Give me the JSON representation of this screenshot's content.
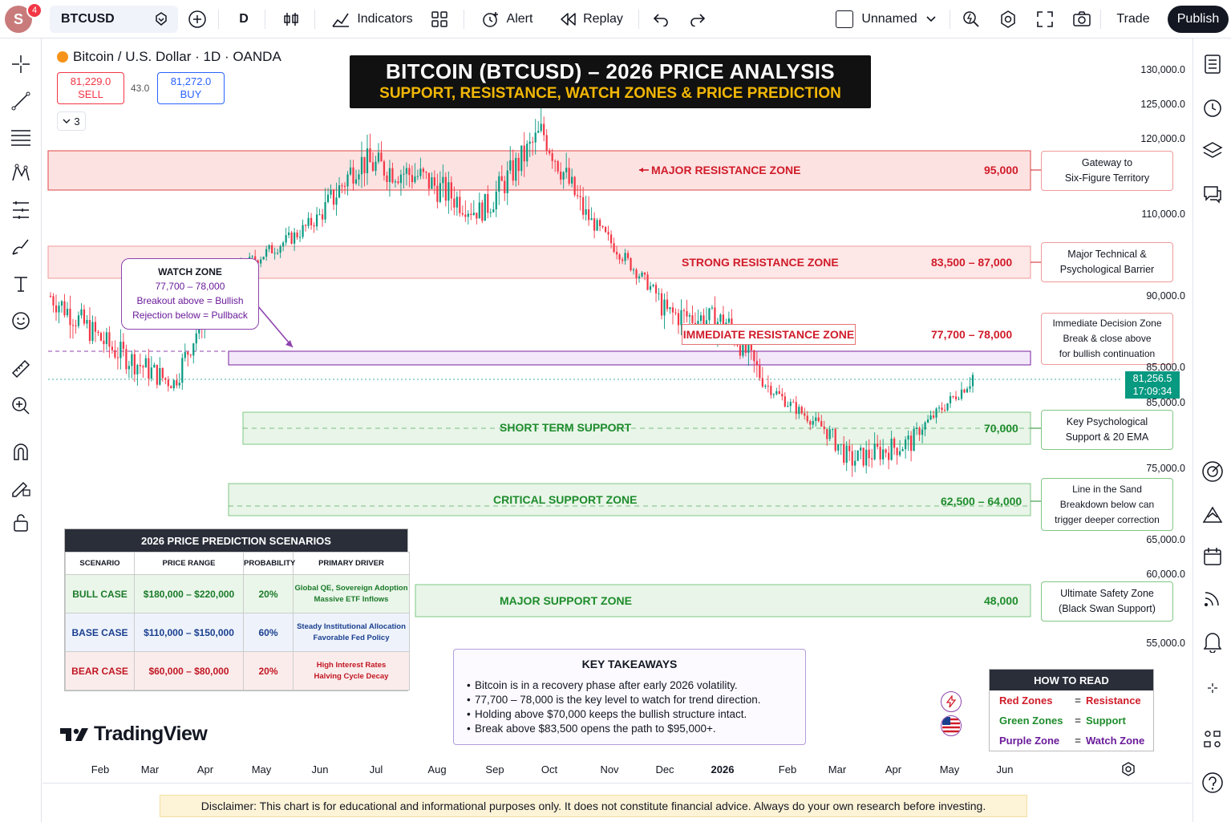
{
  "toolbar": {
    "avatar_initial": "S",
    "avatar_badge": "4",
    "symbol": "BTCUSD",
    "interval": "D",
    "indicators_label": "Indicators",
    "alert_label": "Alert",
    "replay_label": "Replay",
    "layout_name": "Unnamed",
    "trade_label": "Trade",
    "publish_label": "Publish"
  },
  "legend": {
    "title": "Bitcoin / U.S. Dollar · 1D · OANDA",
    "sell_price": "81,229.0",
    "sell_label": "SELL",
    "spread": "43.0",
    "buy_price": "81,272.0",
    "buy_label": "BUY",
    "indicator_count": "3"
  },
  "banner": {
    "title": "BITCOIN (BTCUSD) – 2026 PRICE ANALYSIS",
    "subtitle": "SUPPORT, RESISTANCE, WATCH ZONES & PRICE PREDICTION"
  },
  "zones": {
    "major_resistance": {
      "label": "MAJOR RESISTANCE ZONE",
      "value": "95,000"
    },
    "strong_resistance": {
      "label": "STRONG RESISTANCE ZONE",
      "value": "83,500 – 87,000"
    },
    "immediate_resistance": {
      "label": "IMMEDIATE RESISTANCE ZONE",
      "value": "77,700 – 78,000"
    },
    "short_support": {
      "label": "SHORT TERM SUPPORT",
      "value": "70,000"
    },
    "critical_support": {
      "label": "CRITICAL SUPPORT ZONE",
      "value": "62,500 – 64,000"
    },
    "major_support": {
      "label": "MAJOR SUPPORT ZONE",
      "value": "48,000"
    }
  },
  "callouts": {
    "c1": {
      "l1": "Gateway to",
      "l2": "Six-Figure Territory"
    },
    "c2": {
      "l1": "Major Technical &",
      "l2": "Psychological Barrier"
    },
    "c3": {
      "l1": "Immediate Decision Zone",
      "l2": "Break & close above",
      "l3": "for bullish continuation"
    },
    "c4": {
      "l1": "Key Psychological",
      "l2": "Support & 20 EMA"
    },
    "c5": {
      "l1": "Line in the Sand",
      "l2": "Breakdown below can",
      "l3": "trigger deeper correction"
    },
    "c6": {
      "l1": "Ultimate Safety Zone",
      "l2": "(Black Swan Support)"
    }
  },
  "watch_zone": {
    "title": "WATCH ZONE",
    "range": "77,700 – 78,000",
    "line1": "Breakout above = Bullish",
    "line2": "Rejection below = Pullback"
  },
  "price_axis": [
    "130,000.0",
    "125,000.0",
    "120,000.0",
    "110,000.0",
    "90,000.0",
    "85,000.0",
    "85,000.0",
    "75,000.0",
    "65,000.0",
    "60,000.0",
    "55,000.0"
  ],
  "last_price": {
    "price": "81,256.5",
    "countdown": "17:09:34"
  },
  "time_axis": [
    "Feb",
    "Mar",
    "Apr",
    "May",
    "Jun",
    "Jul",
    "Aug",
    "Sep",
    "Oct",
    "Nov",
    "Dec",
    "2026",
    "Feb",
    "Mar",
    "Apr",
    "May",
    "Jun"
  ],
  "scenarios": {
    "title": "2026 PRICE PREDICTION SCENARIOS",
    "headers": [
      "SCENARIO",
      "PRICE RANGE",
      "PROBABILITY",
      "PRIMARY DRIVER"
    ],
    "rows": [
      {
        "name": "BULL CASE",
        "range": "$180,000 – $220,000",
        "prob": "20%",
        "d1": "Global QE, Sovereign Adoption",
        "d2": "Massive ETF Inflows"
      },
      {
        "name": "BASE CASE",
        "range": "$110,000 – $150,000",
        "prob": "60%",
        "d1": "Steady Institutional Allocation",
        "d2": "Favorable Fed Policy"
      },
      {
        "name": "BEAR CASE",
        "range": "$60,000 – $80,000",
        "prob": "20%",
        "d1": "High Interest Rates",
        "d2": "Halving Cycle Decay"
      }
    ]
  },
  "takeaways": {
    "title": "KEY TAKEAWAYS",
    "items": [
      "Bitcoin is in a recovery phase after early 2026 volatility.",
      "77,700 – 78,000 is the key level to watch for trend direction.",
      "Holding above $70,000 keeps the bullish structure intact.",
      "Break above $83,500 opens the path to $95,000+."
    ]
  },
  "how_to_read": {
    "title": "HOW TO READ",
    "rows": [
      {
        "k": "Red Zones",
        "eq": "=",
        "v": "Resistance"
      },
      {
        "k": "Green Zones",
        "eq": "=",
        "v": "Support"
      },
      {
        "k": "Purple Zone",
        "eq": "=",
        "v": "Watch Zone"
      }
    ]
  },
  "logo_text": "TradingView",
  "disclaimer": "Disclaimer: This chart is for educational and informational purposes only. It does not constitute financial advice. Always do your own research before investing.",
  "colors": {
    "up": "#089981",
    "down": "#f23645",
    "resistance_fill": "#fde2e2",
    "support_fill": "#e3f4e3",
    "watch_zone": "#8e44ad"
  },
  "chart_data": {
    "type": "candlestick",
    "symbol": "BTCUSD",
    "interval": "1D",
    "close_path": [
      [
        "Feb",
        90000
      ],
      [
        "Mar",
        84000
      ],
      [
        "Apr",
        80000
      ],
      [
        "May",
        96000
      ],
      [
        "Jun",
        105000
      ],
      [
        "Jul",
        117000
      ],
      [
        "Aug",
        115000
      ],
      [
        "Sep",
        110000
      ],
      [
        "Oct",
        121000
      ],
      [
        "Nov",
        105000
      ],
      [
        "Dec",
        88000
      ],
      [
        "2026",
        87000
      ],
      [
        "Feb",
        76000
      ],
      [
        "Mar",
        67000
      ],
      [
        "Apr",
        69000
      ],
      [
        "May",
        81000
      ]
    ],
    "horizontal_zones": [
      "95,000",
      "83,500 – 87,000",
      "77,700 – 78,000",
      "70,000",
      "62,500 – 64,000",
      "48,000"
    ],
    "last_price": 81256.5
  }
}
